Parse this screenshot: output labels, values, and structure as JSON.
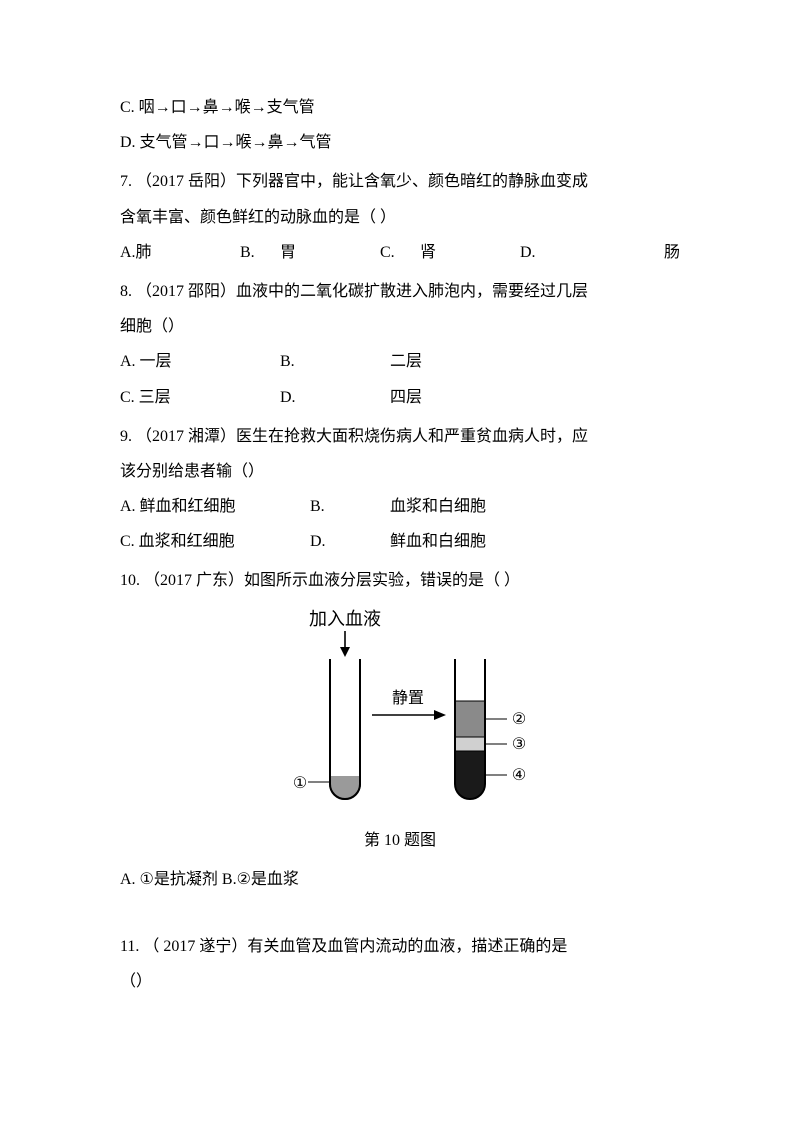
{
  "colors": {
    "text": "#000000",
    "bg": "#ffffff",
    "tube_stroke": "#000000",
    "tube_fill_white": "#ffffff",
    "layer2": "#8a8a8a",
    "layer3": "#d0d0d0",
    "layer4": "#1a1a1a",
    "layer1": "#9a9a9a"
  },
  "lines": {
    "c6": "C.  咽→口→鼻→喉→支气管",
    "d6": "D.  支气管→口→喉→鼻→气管"
  },
  "q7": {
    "stem1": "7.  （2017 岳阳）下列器官中，能让含氧少、颜色暗红的静脉血变成",
    "stem2": "含氧丰富、颜色鲜红的动脉血的是（         ）",
    "A_label": "A.肺",
    "B_letter": "B.",
    "B_text": "胃",
    "C_letter": "C.",
    "C_text": "肾",
    "D_letter": "D.",
    "D_text": "肠"
  },
  "q8": {
    "stem1": "8.  （2017 邵阳）血液中的二氧化碳扩散进入肺泡内，需要经过几层",
    "stem2": "细胞（）",
    "A": "A.  一层",
    "B_letter": "B.",
    "B_text": "二层",
    "C": "C.  三层",
    "D_letter": "D.",
    "D_text": "四层"
  },
  "q9": {
    "stem1": "9.  （2017 湘潭）医生在抢救大面积烧伤病人和严重贫血病人时，应",
    "stem2": "该分别给患者输（）",
    "A": "A.  鲜血和红细胞",
    "B_letter": "B.",
    "B_text": "血浆和白细胞",
    "C": "C.  血浆和红细胞",
    "D_letter": "D.",
    "D_text": "鲜血和白细胞"
  },
  "q10": {
    "stem": "10.  （2017 广东）如图所示血液分层实验，错误的是（         ）",
    "figlabel": "第 10 题图",
    "A": "A.  ①是抗凝剂 B.②是血浆"
  },
  "q11": {
    "stem1": "11.  （ 2017 遂宁）有关血管及血管内流动的血液，描述正确的是",
    "stem2": "（）"
  },
  "diagram": {
    "title": "加入血液",
    "arrow_label": "静置",
    "circled1": "①",
    "circled2": "②",
    "circled3": "③",
    "circled4": "④",
    "tube_stroke_width": 2,
    "arrow_stroke_width": 1.6,
    "font_size_title": 18,
    "font_size_label": 16
  }
}
